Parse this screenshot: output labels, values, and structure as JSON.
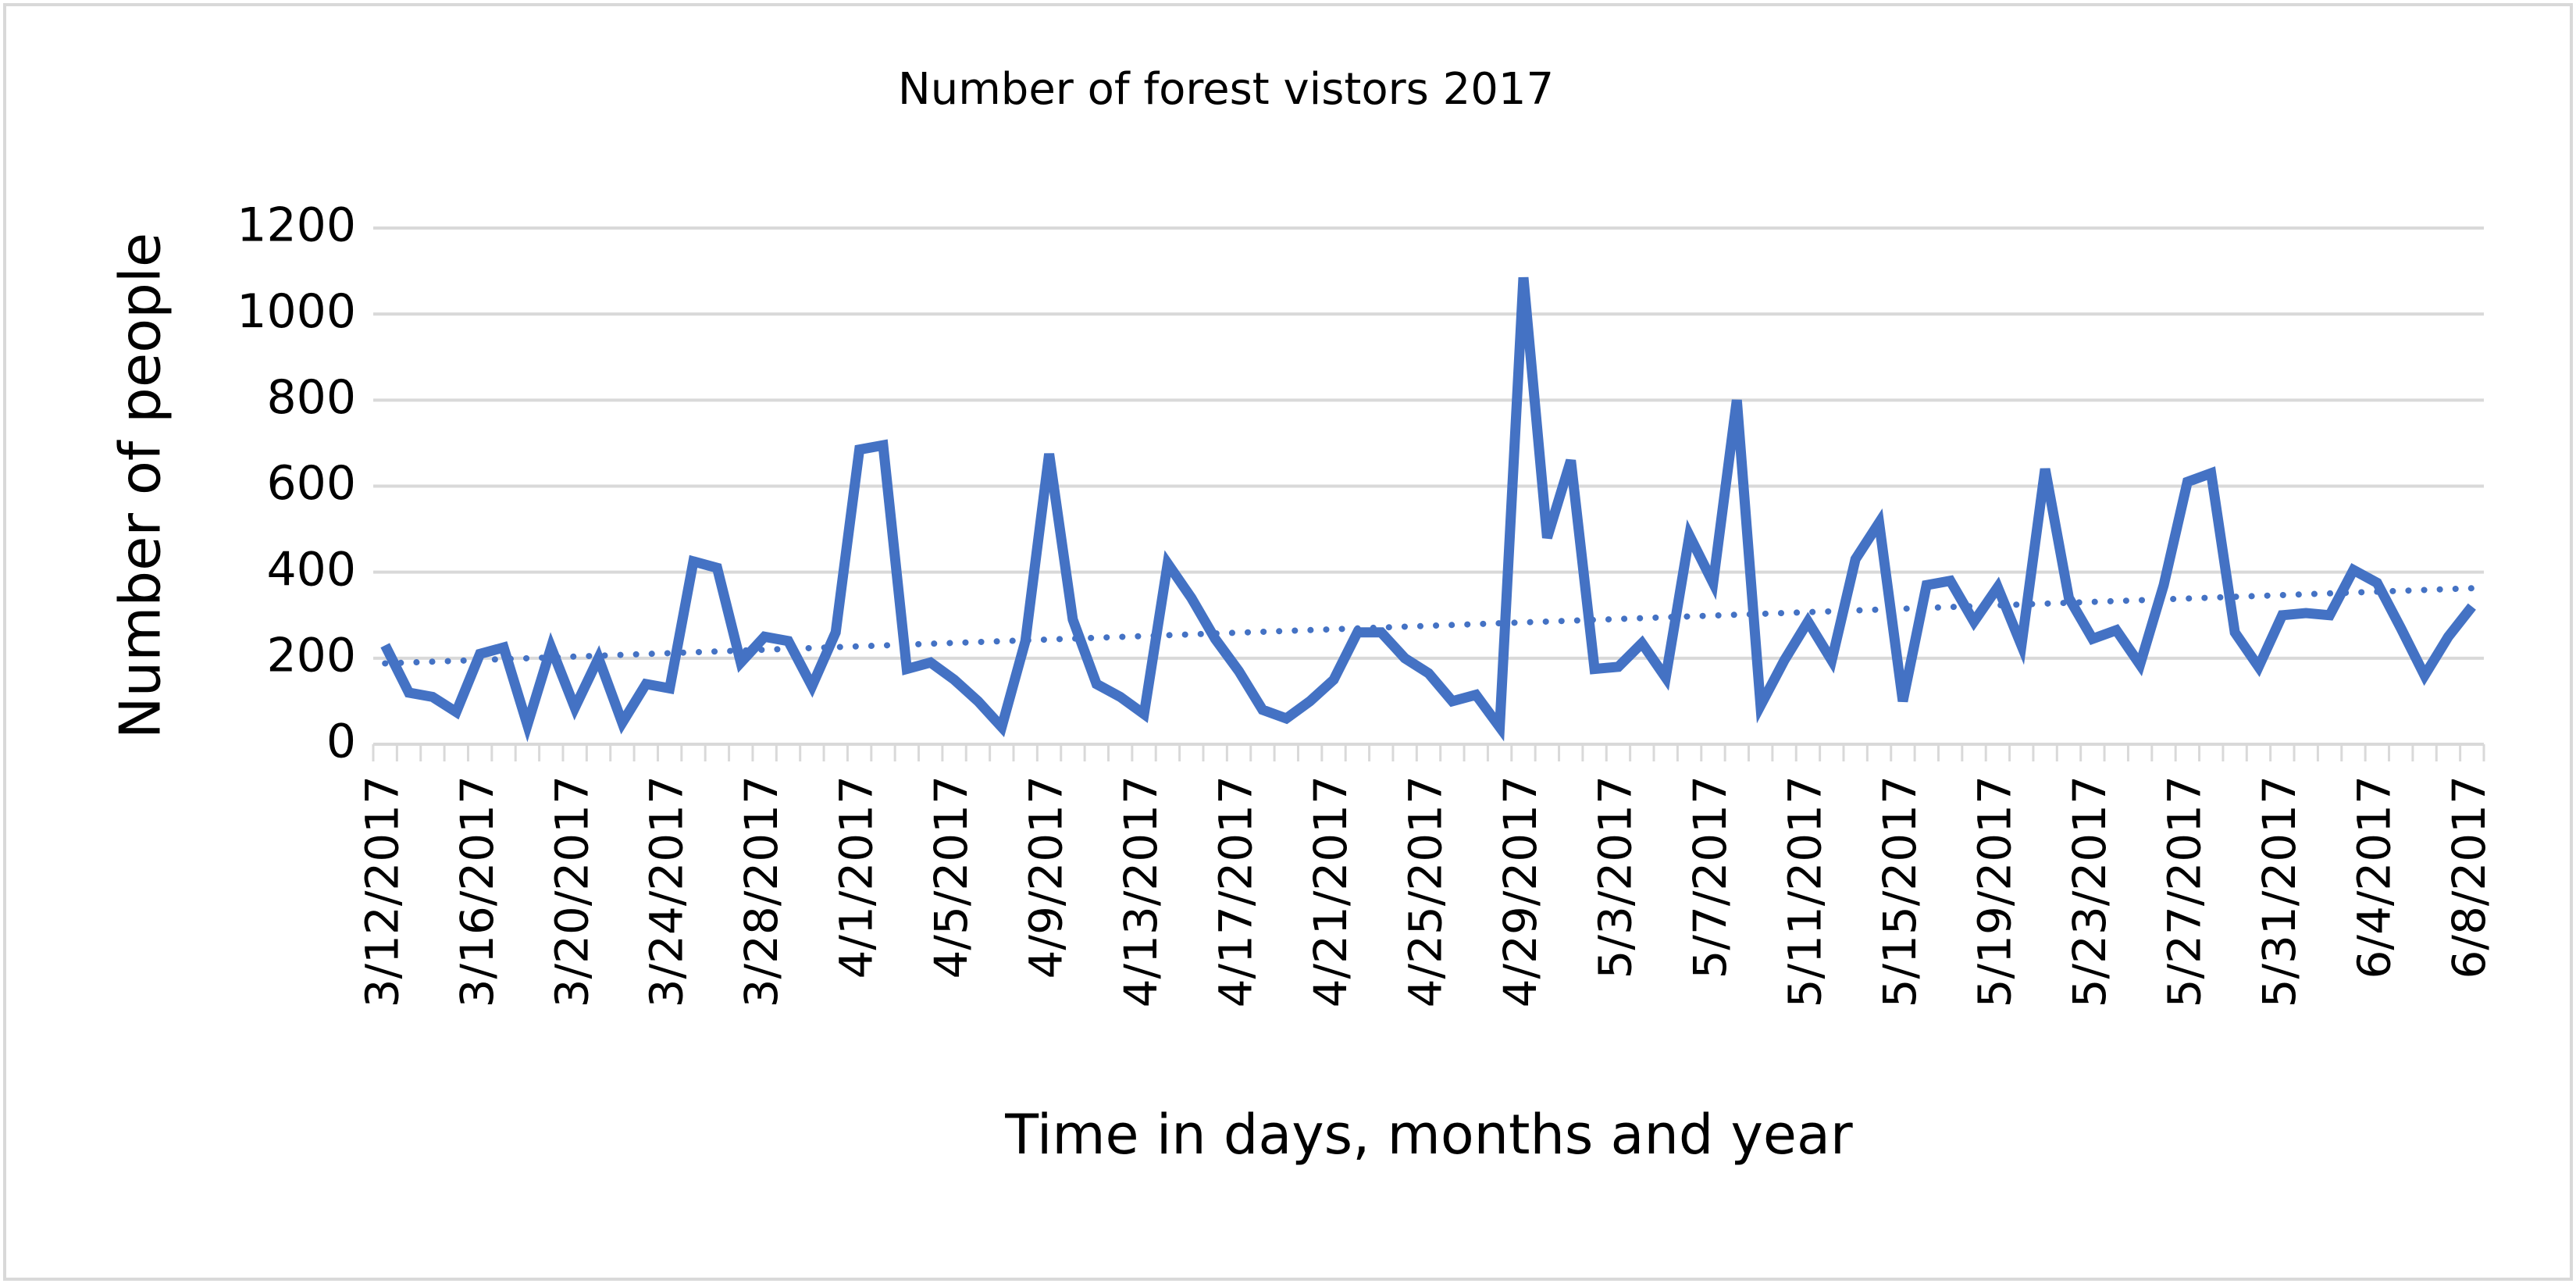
{
  "chart_data": {
    "type": "line",
    "title": "Number of forest vistors 2017",
    "x_label": "Time in days, months and year",
    "y_label": "Number of people",
    "categories": [
      "3/12/2017",
      null,
      null,
      null,
      "3/16/2017",
      null,
      null,
      null,
      "3/20/2017",
      null,
      null,
      null,
      "3/24/2017",
      null,
      null,
      null,
      "3/28/2017",
      null,
      null,
      null,
      "4/1/2017",
      null,
      null,
      null,
      "4/5/2017",
      null,
      null,
      null,
      "4/9/2017",
      null,
      null,
      null,
      "4/13/2017",
      null,
      null,
      null,
      "4/17/2017",
      null,
      null,
      null,
      "4/21/2017",
      null,
      null,
      null,
      "4/25/2017",
      null,
      null,
      null,
      "4/29/2017",
      null,
      null,
      null,
      "5/3/2017",
      null,
      null,
      null,
      "5/7/2017",
      null,
      null,
      null,
      "5/11/2017",
      null,
      null,
      null,
      "5/15/2017",
      null,
      null,
      null,
      "5/19/2017",
      null,
      null,
      null,
      "5/23/2017",
      null,
      null,
      null,
      "5/27/2017",
      null,
      null,
      null,
      "5/31/2017",
      null,
      null,
      null,
      "6/4/2017",
      null,
      null,
      null,
      "6/8/2017"
    ],
    "values": [
      230,
      120,
      110,
      75,
      210,
      225,
      45,
      225,
      85,
      200,
      50,
      140,
      130,
      425,
      410,
      190,
      250,
      240,
      135,
      260,
      685,
      695,
      175,
      190,
      150,
      100,
      40,
      240,
      675,
      290,
      140,
      110,
      70,
      420,
      340,
      245,
      170,
      80,
      60,
      100,
      150,
      260,
      260,
      200,
      165,
      100,
      115,
      40,
      1085,
      480,
      660,
      175,
      180,
      235,
      155,
      485,
      375,
      800,
      90,
      195,
      285,
      195,
      430,
      515,
      100,
      370,
      380,
      285,
      365,
      230,
      640,
      340,
      245,
      265,
      185,
      370,
      610,
      630,
      260,
      180,
      300,
      305,
      300,
      405,
      375,
      270,
      160,
      250,
      320
    ],
    "color": "#4472c4",
    "trendline": "linear",
    "trendline_style": "dotted",
    "ylim": [
      0,
      1200
    ],
    "yticks": [
      0,
      200,
      400,
      600,
      800,
      1000,
      1200
    ],
    "grid": true
  }
}
